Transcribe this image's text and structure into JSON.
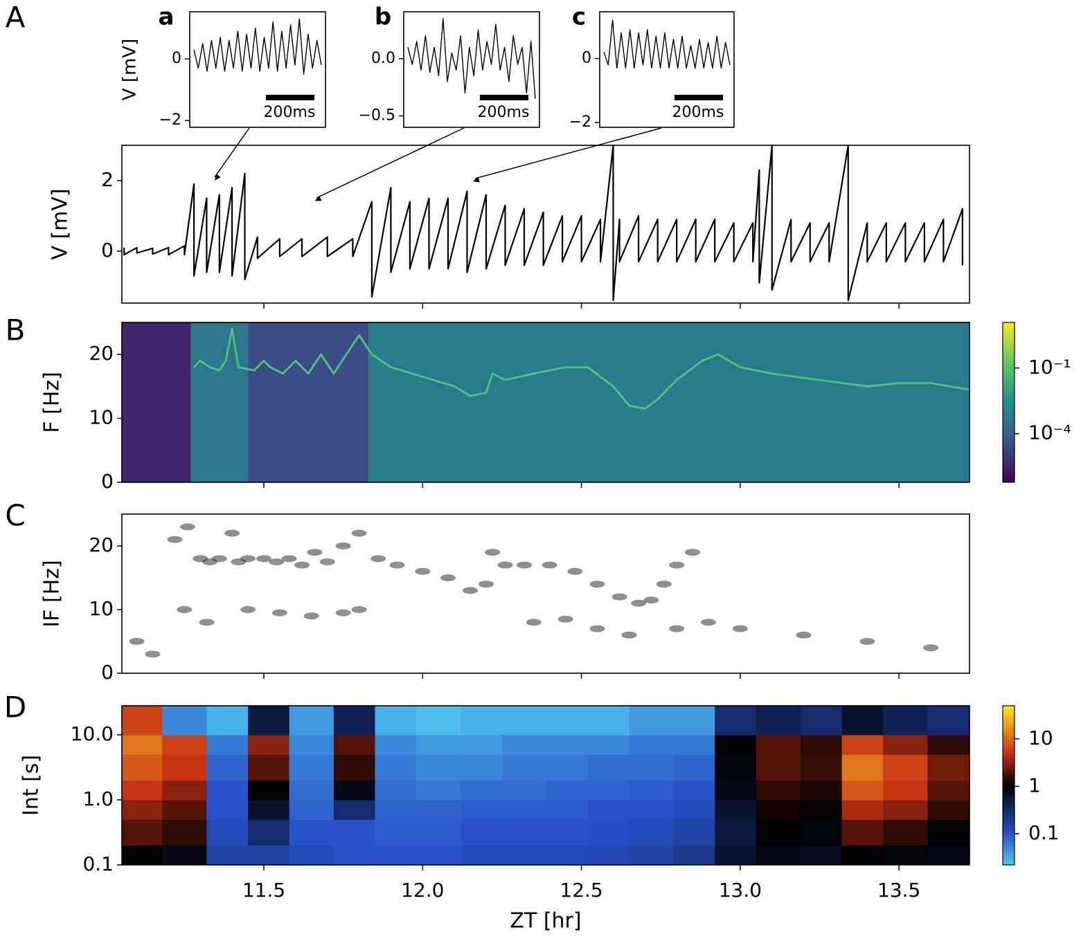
{
  "chart_data": [
    {
      "type": "line",
      "panel": "a",
      "ylabel": "V [mV]",
      "ylim": [
        -2.22,
        1.53
      ],
      "yticks": [
        0,
        {
          "value": -2,
          "label": "−2"
        }
      ],
      "scalebar_label": "200ms",
      "color": "#000000",
      "values": [
        0.3,
        -0.3,
        0.5,
        -0.4,
        0.6,
        -0.3,
        0.7,
        -0.4,
        0.6,
        -0.3,
        0.9,
        -0.4,
        0.8,
        -0.3,
        1.0,
        -0.4,
        0.7,
        -0.3,
        1.2,
        -0.4,
        0.9,
        -0.3,
        1.1,
        -0.2,
        1.3,
        -0.5,
        0.8,
        -0.3,
        0.6,
        -0.2
      ]
    },
    {
      "type": "line",
      "panel": "b",
      "ylim": [
        -0.6,
        0.41
      ],
      "yticks": [
        {
          "value": 0,
          "label": "0.0"
        },
        {
          "value": -0.5,
          "label": "−0.5"
        }
      ],
      "scalebar_label": "200ms",
      "color": "#000000",
      "values": [
        0.1,
        -0.05,
        0.15,
        -0.1,
        0.2,
        -0.12,
        0.1,
        -0.15,
        0.35,
        -0.2,
        0.05,
        -0.1,
        0.2,
        -0.3,
        0.1,
        -0.15,
        0.25,
        -0.1,
        0.15,
        -0.05,
        0.3,
        -0.1,
        0.1,
        -0.2,
        0.2,
        -0.05,
        0.1,
        -0.3,
        0.15,
        -0.35
      ]
    },
    {
      "type": "line",
      "panel": "c",
      "ylim": [
        -2.15,
        1.46
      ],
      "yticks": [
        0,
        {
          "value": -2,
          "label": "−2"
        }
      ],
      "scalebar_label": "200ms",
      "color": "#000000",
      "values": [
        0.2,
        -0.2,
        1.2,
        -0.3,
        0.8,
        -0.3,
        0.9,
        -0.3,
        0.8,
        -0.2,
        0.9,
        -0.3,
        0.7,
        -0.3,
        0.8,
        -0.3,
        0.6,
        -0.3,
        0.7,
        -0.3,
        0.4,
        -0.3,
        0.6,
        -0.3,
        0.5,
        -0.3,
        0.7,
        -0.3,
        0.5,
        -0.2
      ]
    },
    {
      "type": "line",
      "panel": "A",
      "ylabel": "V [mV]",
      "ylim": [
        -1.47,
        3.0
      ],
      "yticks": [
        0,
        2
      ],
      "color": "#000000",
      "x": [
        11.06,
        11.06,
        11.1,
        11.1,
        11.15,
        11.15,
        11.2,
        11.2,
        11.25,
        11.25,
        11.28,
        11.28,
        11.32,
        11.32,
        11.36,
        11.36,
        11.4,
        11.4,
        11.44,
        11.44,
        11.48,
        11.48,
        11.55,
        11.55,
        11.62,
        11.62,
        11.7,
        11.7,
        11.78,
        11.78,
        11.84,
        11.84,
        11.9,
        11.9,
        11.96,
        11.96,
        12.02,
        12.02,
        12.08,
        12.08,
        12.14,
        12.14,
        12.2,
        12.2,
        12.26,
        12.26,
        12.32,
        12.32,
        12.38,
        12.38,
        12.44,
        12.44,
        12.5,
        12.5,
        12.56,
        12.56,
        12.6,
        12.6,
        12.62,
        12.62,
        12.68,
        12.68,
        12.74,
        12.74,
        12.8,
        12.8,
        12.86,
        12.86,
        12.92,
        12.92,
        12.98,
        12.98,
        13.04,
        13.04,
        13.06,
        13.06,
        13.1,
        13.1,
        13.16,
        13.16,
        13.22,
        13.22,
        13.28,
        13.28,
        13.34,
        13.34,
        13.4,
        13.4,
        13.46,
        13.46,
        13.52,
        13.52,
        13.58,
        13.58,
        13.64,
        13.64,
        13.7,
        13.7
      ],
      "values": [
        0.1,
        -0.1,
        0.1,
        -0.05,
        0.08,
        -0.08,
        0.1,
        -0.1,
        0.15,
        -0.1,
        1.9,
        -0.7,
        1.5,
        -0.6,
        1.6,
        -0.6,
        1.8,
        -0.7,
        2.2,
        -0.8,
        0.4,
        -0.2,
        0.35,
        -0.15,
        0.35,
        -0.15,
        0.4,
        -0.15,
        0.35,
        -0.15,
        1.4,
        -1.3,
        1.8,
        -0.6,
        1.4,
        -0.5,
        1.5,
        -0.5,
        1.5,
        -0.5,
        1.7,
        -0.6,
        1.6,
        -0.5,
        1.3,
        -0.4,
        1.2,
        -0.4,
        1.1,
        -0.4,
        1.0,
        -0.3,
        1.0,
        -0.3,
        0.9,
        -0.3,
        3.0,
        -1.4,
        0.9,
        -0.3,
        1.0,
        -0.3,
        0.9,
        -0.3,
        0.9,
        -0.3,
        0.9,
        -0.3,
        0.9,
        -0.3,
        0.8,
        -0.3,
        0.8,
        -0.3,
        2.3,
        -0.9,
        3.0,
        -1.1,
        0.9,
        -0.3,
        0.8,
        -0.3,
        0.8,
        -0.3,
        3.0,
        -1.4,
        0.8,
        -0.3,
        0.8,
        -0.3,
        0.8,
        -0.3,
        0.8,
        -0.3,
        0.9,
        -0.3,
        1.2,
        -0.4
      ]
    },
    {
      "type": "spectrogram",
      "panel": "B",
      "ylabel": "F [Hz]",
      "ylim": [
        0,
        25
      ],
      "yticks": [
        0,
        10,
        20
      ],
      "color": "#4ec27a",
      "x": [
        11.28,
        11.3,
        11.33,
        11.36,
        11.38,
        11.4,
        11.42,
        11.47,
        11.5,
        11.52,
        11.56,
        11.6,
        11.64,
        11.68,
        11.72,
        11.76,
        11.8,
        11.84,
        11.9,
        12.0,
        12.1,
        12.15,
        12.2,
        12.22,
        12.26,
        12.35,
        12.45,
        12.52,
        12.6,
        12.65,
        12.7,
        12.74,
        12.8,
        12.88,
        12.93,
        13.0,
        13.1,
        13.25,
        13.4,
        13.5,
        13.6,
        13.72
      ],
      "values": [
        18,
        19,
        18,
        17.5,
        19,
        24,
        18,
        17.5,
        19,
        18,
        17,
        19,
        17,
        20,
        17,
        20,
        23,
        20,
        18,
        16.5,
        15,
        13.5,
        14,
        17,
        16,
        17,
        18,
        18,
        15,
        12,
        11.5,
        13,
        16,
        19,
        20,
        18,
        17,
        16,
        15,
        15.5,
        15.5,
        14.5
      ],
      "background": {
        "bins": [
          11.05,
          11.27,
          11.45,
          11.83,
          13.72
        ],
        "values": [
          4e-06,
          0.0005,
          3e-05,
          0.0006
        ]
      },
      "colorbar": {
        "lim": [
          6e-07,
          12
        ],
        "ticks": [
          {
            "value": 0.1,
            "label": "10⁻¹"
          },
          {
            "value": 0.0001,
            "label": "10⁻⁴"
          }
        ]
      }
    },
    {
      "type": "scatter",
      "panel": "C",
      "ylabel": "IF [Hz]",
      "ylim": [
        0,
        25
      ],
      "yticks": [
        0,
        10,
        20
      ],
      "color": "#333333",
      "x": [
        11.22,
        11.26,
        11.3,
        11.33,
        11.36,
        11.4,
        11.42,
        11.45,
        11.5,
        11.54,
        11.58,
        11.62,
        11.66,
        11.7,
        11.75,
        11.8,
        11.86,
        11.92,
        12.0,
        12.08,
        12.15,
        12.2,
        12.22,
        12.26,
        12.32,
        12.4,
        12.48,
        12.55,
        12.62,
        12.68,
        12.72,
        12.76,
        12.8,
        12.85,
        11.25,
        11.32,
        11.45,
        11.55,
        11.65,
        11.75,
        11.8,
        12.35,
        12.45,
        12.55,
        12.65,
        12.8,
        12.9,
        13.0,
        13.2,
        13.4,
        13.6,
        11.1,
        11.15
      ],
      "values": [
        21,
        23,
        18,
        17.5,
        18,
        22,
        17.5,
        18,
        18,
        17.5,
        18,
        17,
        19,
        17.5,
        20,
        22,
        18,
        17,
        16,
        15,
        13,
        14,
        19,
        17,
        17,
        17,
        16,
        14,
        12,
        11,
        11.5,
        14,
        17,
        19,
        10,
        8,
        10,
        9.5,
        9,
        9.5,
        10,
        8,
        8.5,
        7,
        6,
        7,
        8,
        7,
        6,
        5,
        4,
        5,
        3
      ]
    },
    {
      "type": "heatmap",
      "panel": "D",
      "ylabel": "Int [s]",
      "xlabel": "ZT [hr]",
      "ylog": true,
      "ylim": [
        0.1,
        28
      ],
      "yticks": [
        0.1,
        {
          "value": 1,
          "label": "1.0"
        },
        {
          "value": 10,
          "label": "10.0"
        }
      ],
      "xlim": [
        11.053,
        13.722
      ],
      "xticks": [
        11.5,
        {
          "value": 12,
          "label": "12.0"
        },
        12.5,
        {
          "value": 13,
          "label": "13.0"
        },
        13.5
      ],
      "x_bins": [
        11.05,
        11.18,
        11.32,
        11.45,
        11.58,
        11.72,
        11.85,
        11.98,
        12.12,
        12.25,
        12.39,
        12.52,
        12.65,
        12.79,
        12.92,
        13.05,
        13.19,
        13.32,
        13.45,
        13.59,
        13.72
      ],
      "y_bins": [
        0.1,
        0.2,
        0.5,
        1,
        2,
        5,
        10,
        28
      ],
      "values": [
        [
          1,
          2,
          3,
          5,
          8,
          12,
          6
        ],
        [
          0.8,
          1.5,
          2,
          3,
          5,
          6,
          0.05
        ],
        [
          0.15,
          0.12,
          0.1,
          0.1,
          0.08,
          0.06,
          0.03
        ],
        [
          0.15,
          0.3,
          0.6,
          1,
          2,
          3,
          0.5
        ],
        [
          0.12,
          0.1,
          0.08,
          0.07,
          0.06,
          0.05,
          0.04
        ],
        [
          0.1,
          0.1,
          0.3,
          0.8,
          1.5,
          2,
          0.4
        ],
        [
          0.1,
          0.09,
          0.08,
          0.07,
          0.06,
          0.05,
          0.03
        ],
        [
          0.1,
          0.09,
          0.08,
          0.06,
          0.05,
          0.04,
          0.025
        ],
        [
          0.12,
          0.1,
          0.09,
          0.07,
          0.05,
          0.04,
          0.03
        ],
        [
          0.12,
          0.1,
          0.09,
          0.07,
          0.06,
          0.05,
          0.03
        ],
        [
          0.12,
          0.1,
          0.09,
          0.08,
          0.06,
          0.05,
          0.03
        ],
        [
          0.13,
          0.11,
          0.1,
          0.08,
          0.07,
          0.05,
          0.03
        ],
        [
          0.15,
          0.12,
          0.1,
          0.09,
          0.07,
          0.06,
          0.04
        ],
        [
          0.2,
          0.15,
          0.12,
          0.1,
          0.08,
          0.06,
          0.04
        ],
        [
          0.6,
          0.5,
          0.6,
          0.8,
          0.9,
          1,
          0.3
        ],
        [
          0.8,
          1,
          1.2,
          1.5,
          2,
          2,
          0.4
        ],
        [
          0.7,
          0.9,
          1.1,
          1.3,
          1.6,
          1.5,
          0.3
        ],
        [
          1,
          2,
          4,
          8,
          12,
          6,
          0.6
        ],
        [
          0.9,
          1.5,
          3,
          5,
          6,
          3,
          0.4
        ],
        [
          0.8,
          1,
          1.5,
          2,
          2.5,
          1.5,
          0.3
        ]
      ],
      "colorbar": {
        "lim": [
          0.022,
          50
        ],
        "ticks": [
          10,
          1,
          0.1
        ]
      }
    }
  ]
}
